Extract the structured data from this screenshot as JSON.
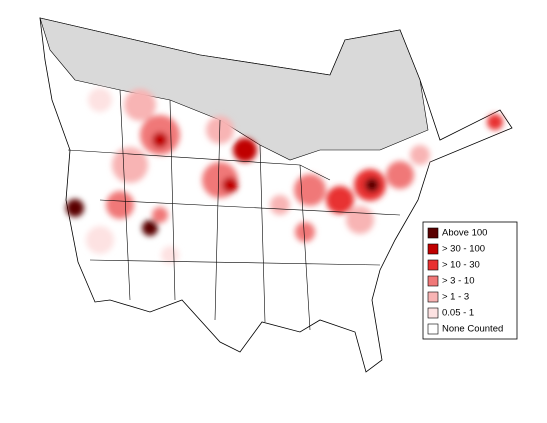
{
  "legend": {
    "items": [
      {
        "label": "Above 100",
        "color": "#5a0000"
      },
      {
        "label": "> 30 - 100",
        "color": "#c00000"
      },
      {
        "label": "> 10 - 30",
        "color": "#e83030"
      },
      {
        "label": "> 3 - 10",
        "color": "#f07878"
      },
      {
        "label": "> 1 - 3",
        "color": "#f8b4b4"
      },
      {
        "label": "0.05 - 1",
        "color": "#fde2e2"
      },
      {
        "label": "None Counted",
        "color": "#ffffff"
      }
    ]
  }
}
